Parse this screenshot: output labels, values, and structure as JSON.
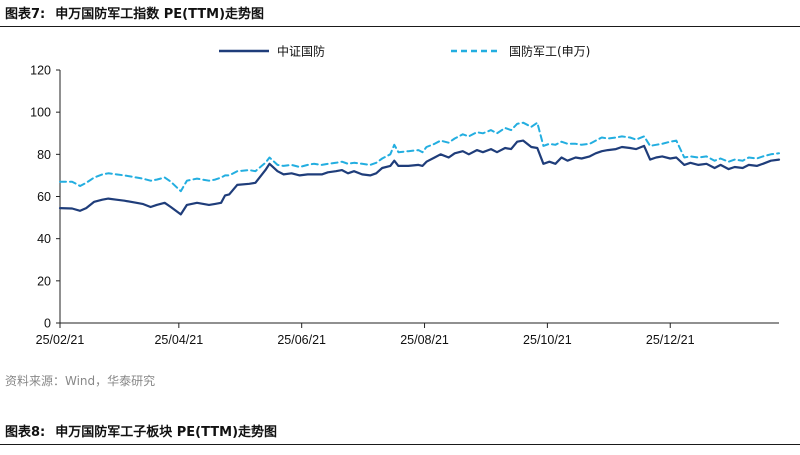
{
  "header": {
    "figure_label": "图表7:",
    "title": "申万国防军工指数 PE(TTM)走势图"
  },
  "footer": {
    "source": "资料来源：Wind，华泰研究",
    "next_figure_label": "图表8:",
    "next_title": "申万国防军工子板块 PE(TTM)走势图"
  },
  "chart_data": {
    "type": "line",
    "xlabel": "",
    "ylabel": "",
    "ylim": [
      0,
      120
    ],
    "yticks": [
      0,
      20,
      40,
      60,
      80,
      100,
      120
    ],
    "xticks": [
      "25/02/21",
      "25/04/21",
      "25/06/21",
      "25/08/21",
      "25/10/21",
      "25/12/21"
    ],
    "x_start": "2025-02-21",
    "x_end": "2026-02-13",
    "legend_position": "top",
    "series": [
      {
        "name": "中证国防",
        "color": "#1f3d7a",
        "style": "solid",
        "points": [
          [
            "2025-02-21",
            54.5
          ],
          [
            "2025-02-27",
            54.3
          ],
          [
            "2025-03-03",
            53.2
          ],
          [
            "2025-03-06",
            54.5
          ],
          [
            "2025-03-10",
            57.5
          ],
          [
            "2025-03-14",
            58.5
          ],
          [
            "2025-03-17",
            59.0
          ],
          [
            "2025-03-21",
            58.5
          ],
          [
            "2025-03-25",
            58.0
          ],
          [
            "2025-03-31",
            57.0
          ],
          [
            "2025-04-03",
            56.5
          ],
          [
            "2025-04-07",
            55.0
          ],
          [
            "2025-04-10",
            56.0
          ],
          [
            "2025-04-14",
            57.0
          ],
          [
            "2025-04-17",
            55.0
          ],
          [
            "2025-04-22",
            51.5
          ],
          [
            "2025-04-25",
            56.0
          ],
          [
            "2025-04-30",
            57.0
          ],
          [
            "2025-05-06",
            56.0
          ],
          [
            "2025-05-09",
            56.5
          ],
          [
            "2025-05-12",
            57.0
          ],
          [
            "2025-05-14",
            60.5
          ],
          [
            "2025-05-16",
            61.0
          ],
          [
            "2025-05-20",
            65.5
          ],
          [
            "2025-05-26",
            66.0
          ],
          [
            "2025-05-29",
            66.5
          ],
          [
            "2025-06-03",
            72.5
          ],
          [
            "2025-06-05",
            75.5
          ],
          [
            "2025-06-09",
            72.0
          ],
          [
            "2025-06-12",
            70.5
          ],
          [
            "2025-06-16",
            71.0
          ],
          [
            "2025-06-20",
            70.0
          ],
          [
            "2025-06-24",
            70.5
          ],
          [
            "2025-06-27",
            70.5
          ],
          [
            "2025-07-01",
            70.5
          ],
          [
            "2025-07-04",
            71.5
          ],
          [
            "2025-07-08",
            72.0
          ],
          [
            "2025-07-11",
            72.5
          ],
          [
            "2025-07-14",
            71.0
          ],
          [
            "2025-07-17",
            72.0
          ],
          [
            "2025-07-21",
            70.5
          ],
          [
            "2025-07-25",
            70.0
          ],
          [
            "2025-07-28",
            71.0
          ],
          [
            "2025-07-31",
            73.5
          ],
          [
            "2025-08-04",
            74.5
          ],
          [
            "2025-08-06",
            77.0
          ],
          [
            "2025-08-08",
            74.5
          ],
          [
            "2025-08-13",
            74.5
          ],
          [
            "2025-08-18",
            75.0
          ],
          [
            "2025-08-20",
            74.5
          ],
          [
            "2025-08-22",
            76.5
          ],
          [
            "2025-08-26",
            78.5
          ],
          [
            "2025-08-29",
            80.0
          ],
          [
            "2025-09-02",
            78.5
          ],
          [
            "2025-09-05",
            80.5
          ],
          [
            "2025-09-09",
            81.5
          ],
          [
            "2025-09-12",
            80.0
          ],
          [
            "2025-09-16",
            82.0
          ],
          [
            "2025-09-19",
            81.0
          ],
          [
            "2025-09-23",
            82.5
          ],
          [
            "2025-09-26",
            81.0
          ],
          [
            "2025-09-30",
            83.0
          ],
          [
            "2025-10-03",
            82.5
          ],
          [
            "2025-10-06",
            86.0
          ],
          [
            "2025-10-09",
            86.5
          ],
          [
            "2025-10-13",
            83.5
          ],
          [
            "2025-10-16",
            83.0
          ],
          [
            "2025-10-19",
            75.5
          ],
          [
            "2025-10-22",
            76.5
          ],
          [
            "2025-10-25",
            75.5
          ],
          [
            "2025-10-28",
            78.5
          ],
          [
            "2025-10-31",
            77.0
          ],
          [
            "2025-11-04",
            78.5
          ],
          [
            "2025-11-07",
            78.0
          ],
          [
            "2025-11-11",
            79.0
          ],
          [
            "2025-11-14",
            80.5
          ],
          [
            "2025-11-17",
            81.5
          ],
          [
            "2025-11-20",
            82.0
          ],
          [
            "2025-11-24",
            82.5
          ],
          [
            "2025-11-27",
            83.5
          ],
          [
            "2025-12-01",
            83.0
          ],
          [
            "2025-12-04",
            82.5
          ],
          [
            "2025-12-08",
            84.0
          ],
          [
            "2025-12-11",
            77.5
          ],
          [
            "2025-12-14",
            78.5
          ],
          [
            "2025-12-17",
            79.0
          ],
          [
            "2025-12-21",
            78.0
          ],
          [
            "2025-12-24",
            78.5
          ],
          [
            "2025-12-28",
            75.0
          ],
          [
            "2025-12-31",
            76.0
          ],
          [
            "2026-01-04",
            75.0
          ],
          [
            "2026-01-08",
            75.5
          ],
          [
            "2026-01-12",
            73.5
          ],
          [
            "2026-01-15",
            75.0
          ],
          [
            "2026-01-19",
            73.0
          ],
          [
            "2026-01-22",
            74.0
          ],
          [
            "2026-01-26",
            73.5
          ],
          [
            "2026-01-29",
            75.0
          ],
          [
            "2026-02-02",
            74.5
          ],
          [
            "2026-02-05",
            75.5
          ],
          [
            "2026-02-09",
            77.0
          ],
          [
            "2026-02-13",
            77.5
          ]
        ]
      },
      {
        "name": "国防军工(申万)",
        "color": "#23aee0",
        "style": "dashed",
        "points": [
          [
            "2025-02-21",
            67.0
          ],
          [
            "2025-02-27",
            67.0
          ],
          [
            "2025-03-03",
            65.0
          ],
          [
            "2025-03-06",
            66.5
          ],
          [
            "2025-03-10",
            69.0
          ],
          [
            "2025-03-14",
            70.5
          ],
          [
            "2025-03-17",
            71.0
          ],
          [
            "2025-03-21",
            70.5
          ],
          [
            "2025-03-25",
            70.0
          ],
          [
            "2025-03-31",
            69.0
          ],
          [
            "2025-04-03",
            68.5
          ],
          [
            "2025-04-07",
            67.5
          ],
          [
            "2025-04-10",
            68.0
          ],
          [
            "2025-04-14",
            69.0
          ],
          [
            "2025-04-17",
            67.0
          ],
          [
            "2025-04-22",
            62.5
          ],
          [
            "2025-04-25",
            67.5
          ],
          [
            "2025-04-30",
            68.5
          ],
          [
            "2025-05-06",
            67.5
          ],
          [
            "2025-05-09",
            68.0
          ],
          [
            "2025-05-12",
            69.0
          ],
          [
            "2025-05-14",
            70.0
          ],
          [
            "2025-05-16",
            70.0
          ],
          [
            "2025-05-20",
            72.0
          ],
          [
            "2025-05-26",
            72.5
          ],
          [
            "2025-05-29",
            72.0
          ],
          [
            "2025-06-03",
            76.0
          ],
          [
            "2025-06-05",
            78.5
          ],
          [
            "2025-06-09",
            75.0
          ],
          [
            "2025-06-12",
            74.5
          ],
          [
            "2025-06-16",
            75.0
          ],
          [
            "2025-06-20",
            74.0
          ],
          [
            "2025-06-24",
            75.0
          ],
          [
            "2025-06-27",
            75.5
          ],
          [
            "2025-07-01",
            75.0
          ],
          [
            "2025-07-04",
            75.5
          ],
          [
            "2025-07-08",
            76.0
          ],
          [
            "2025-07-11",
            76.5
          ],
          [
            "2025-07-14",
            75.5
          ],
          [
            "2025-07-17",
            76.0
          ],
          [
            "2025-07-21",
            75.5
          ],
          [
            "2025-07-25",
            75.0
          ],
          [
            "2025-07-28",
            76.0
          ],
          [
            "2025-07-31",
            78.0
          ],
          [
            "2025-08-04",
            80.0
          ],
          [
            "2025-08-06",
            84.5
          ],
          [
            "2025-08-08",
            81.0
          ],
          [
            "2025-08-13",
            81.5
          ],
          [
            "2025-08-18",
            82.0
          ],
          [
            "2025-08-20",
            81.0
          ],
          [
            "2025-08-22",
            83.5
          ],
          [
            "2025-08-26",
            85.0
          ],
          [
            "2025-08-29",
            86.5
          ],
          [
            "2025-09-02",
            85.5
          ],
          [
            "2025-09-05",
            87.5
          ],
          [
            "2025-09-09",
            89.5
          ],
          [
            "2025-09-12",
            88.5
          ],
          [
            "2025-09-16",
            90.5
          ],
          [
            "2025-09-19",
            90.0
          ],
          [
            "2025-09-23",
            91.5
          ],
          [
            "2025-09-26",
            90.0
          ],
          [
            "2025-09-30",
            92.5
          ],
          [
            "2025-10-03",
            91.5
          ],
          [
            "2025-10-06",
            94.5
          ],
          [
            "2025-10-09",
            95.0
          ],
          [
            "2025-10-13",
            93.0
          ],
          [
            "2025-10-16",
            95.0
          ],
          [
            "2025-10-19",
            84.0
          ],
          [
            "2025-10-22",
            85.0
          ],
          [
            "2025-10-25",
            84.5
          ],
          [
            "2025-10-28",
            86.0
          ],
          [
            "2025-10-31",
            85.0
          ],
          [
            "2025-11-04",
            85.0
          ],
          [
            "2025-11-07",
            84.5
          ],
          [
            "2025-11-11",
            85.0
          ],
          [
            "2025-11-14",
            86.5
          ],
          [
            "2025-11-17",
            88.0
          ],
          [
            "2025-11-20",
            87.5
          ],
          [
            "2025-11-24",
            88.0
          ],
          [
            "2025-11-27",
            88.5
          ],
          [
            "2025-12-01",
            88.0
          ],
          [
            "2025-12-04",
            87.0
          ],
          [
            "2025-12-08",
            88.5
          ],
          [
            "2025-12-11",
            84.0
          ],
          [
            "2025-12-14",
            84.5
          ],
          [
            "2025-12-17",
            85.0
          ],
          [
            "2025-12-21",
            86.0
          ],
          [
            "2025-12-24",
            86.5
          ],
          [
            "2025-12-28",
            78.5
          ],
          [
            "2025-12-31",
            79.0
          ],
          [
            "2026-01-04",
            78.5
          ],
          [
            "2026-01-08",
            79.0
          ],
          [
            "2026-01-12",
            77.0
          ],
          [
            "2026-01-15",
            78.0
          ],
          [
            "2026-01-19",
            76.5
          ],
          [
            "2026-01-22",
            77.5
          ],
          [
            "2026-01-26",
            77.0
          ],
          [
            "2026-01-29",
            78.5
          ],
          [
            "2026-02-02",
            78.0
          ],
          [
            "2026-02-05",
            79.0
          ],
          [
            "2026-02-09",
            80.0
          ],
          [
            "2026-02-13",
            80.5
          ]
        ]
      }
    ]
  }
}
